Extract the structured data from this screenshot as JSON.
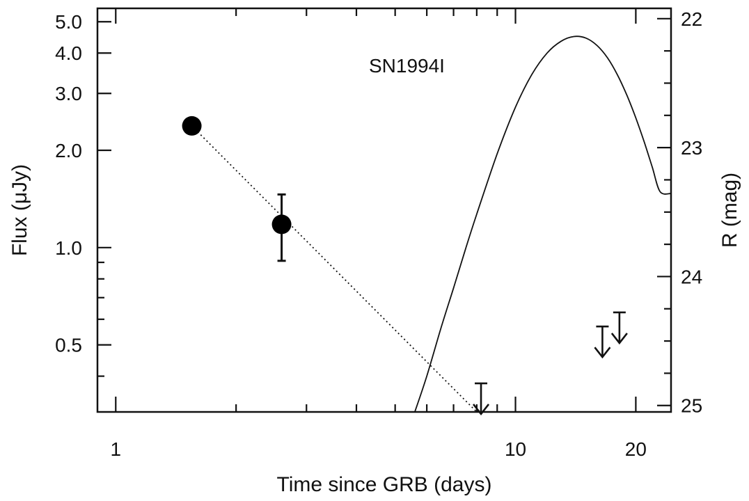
{
  "chart_data": {
    "type": "scatter",
    "title": "",
    "xlabel": "Time since GRB (days)",
    "ylabel_left": "Flux (μJy)",
    "ylabel_right": "R (mag)",
    "x_scale": "log",
    "y_scale": "log",
    "xlim": [
      0.9,
      24.5
    ],
    "ylim": [
      0.31,
      5.5
    ],
    "right_axis_mag_range": [
      25.05,
      21.92
    ],
    "grid": false,
    "legend": "none",
    "x_tick_labels": [
      {
        "value": 1,
        "label": "1"
      },
      {
        "value": 10,
        "label": "10"
      },
      {
        "value": 20,
        "label": "20"
      }
    ],
    "y_tick_labels": [
      {
        "value": 0.5,
        "label": "0.5"
      },
      {
        "value": 1.0,
        "label": "1.0"
      },
      {
        "value": 2.0,
        "label": "2.0"
      },
      {
        "value": 3.0,
        "label": "3.0"
      },
      {
        "value": 4.0,
        "label": "4.0"
      },
      {
        "value": 5.0,
        "label": "5.0"
      }
    ],
    "right_tick_labels": [
      {
        "value": 22,
        "label": "22"
      },
      {
        "value": 23,
        "label": "23"
      },
      {
        "value": 24,
        "label": "24"
      },
      {
        "value": 25,
        "label": "25"
      }
    ],
    "detections": [
      {
        "x": 1.55,
        "y": 2.38,
        "y_err_low": 0,
        "y_err_high": 0
      },
      {
        "x": 2.6,
        "y": 1.18,
        "y_err_low": 0.27,
        "y_err_high": 0.28
      }
    ],
    "upper_limits": [
      {
        "x": 8.2,
        "y": 0.38
      },
      {
        "x": 16.5,
        "y": 0.57
      },
      {
        "x": 18.2,
        "y": 0.63
      }
    ],
    "decay_fit": {
      "x": [
        1.55,
        8.0
      ],
      "y": [
        2.38,
        0.31
      ]
    },
    "sn_template": {
      "name": "SN1994I",
      "x": [
        5.6,
        6,
        6.5,
        7,
        7.5,
        8,
        9,
        10,
        11,
        12,
        13,
        14,
        15,
        16,
        17,
        18,
        19,
        20,
        21,
        22,
        23,
        24.5
      ],
      "y": [
        0.31,
        0.4,
        0.56,
        0.75,
        0.99,
        1.27,
        1.95,
        2.72,
        3.44,
        4.0,
        4.35,
        4.5,
        4.45,
        4.22,
        3.86,
        3.42,
        2.96,
        2.52,
        2.12,
        1.77,
        1.49,
        1.47
      ]
    }
  }
}
